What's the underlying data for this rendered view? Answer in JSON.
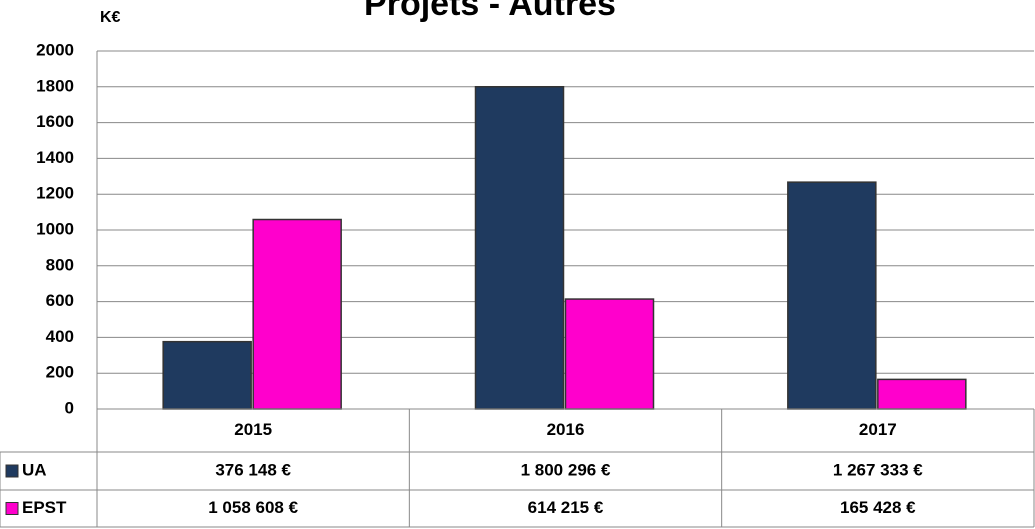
{
  "chart_data": {
    "type": "bar",
    "title": "Projets - Autres",
    "y_unit": "K€",
    "categories": [
      "2015",
      "2016",
      "2017"
    ],
    "series": [
      {
        "name": "UA",
        "color": "#1f3a5f",
        "values": [
          376.148,
          1800.296,
          1267.333
        ],
        "value_labels": [
          "376 148 €",
          "1 800 296 €",
          "1 267 333 €"
        ]
      },
      {
        "name": "EPST",
        "color": "#ff00cc",
        "values": [
          1058.608,
          614.215,
          165.428
        ],
        "value_labels": [
          "1 058 608 €",
          "614 215 €",
          "165 428 €"
        ]
      }
    ],
    "ylim": [
      0,
      2000
    ],
    "yticks": [
      0,
      200,
      400,
      600,
      800,
      1000,
      1200,
      1400,
      1600,
      1800,
      2000
    ],
    "grid": true
  }
}
